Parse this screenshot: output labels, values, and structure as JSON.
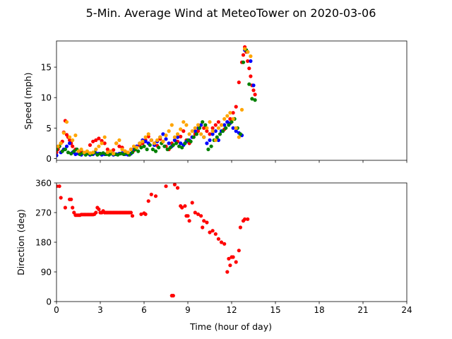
{
  "title": "5-Min. Average Wind at MeteoTower on 2020-03-06",
  "chart_data": [
    {
      "type": "scatter",
      "ylabel": "Speed (mph)",
      "xlim": [
        0,
        24
      ],
      "ylim": [
        -0.3,
        19.3
      ],
      "yticks": [
        0,
        5,
        10,
        15
      ],
      "xticks": [
        0,
        3,
        6,
        9,
        12,
        15,
        18,
        21,
        24
      ],
      "show_x_tick_labels": false,
      "grid": false,
      "colors": [
        "#ff0000",
        "#0000ff",
        "#008000",
        "#ffa500"
      ],
      "series": [
        {
          "color": "#ff0000",
          "x": [
            0.0,
            0.1,
            0.2,
            0.3,
            0.4,
            0.5,
            0.6,
            0.7,
            0.8,
            0.9,
            1.0,
            1.1,
            1.2,
            1.3,
            1.5,
            1.7,
            1.9,
            2.1,
            2.3,
            2.5,
            2.7,
            2.9,
            3.1,
            3.3,
            3.5,
            3.7,
            3.9,
            4.1,
            4.3,
            4.5,
            4.7,
            4.9,
            5.1,
            5.3,
            5.5,
            5.7,
            5.9,
            6.1,
            6.3,
            6.5,
            6.7,
            6.9,
            7.1,
            7.3,
            7.5,
            7.7,
            7.9,
            8.1,
            8.3,
            8.5,
            8.7,
            8.9,
            9.1,
            9.3,
            9.5,
            9.7,
            9.9,
            10.1,
            10.3,
            10.5,
            10.7,
            10.9,
            11.1,
            11.3,
            11.5,
            11.7,
            11.9,
            12.1,
            12.3,
            12.5,
            12.7,
            12.8,
            12.9,
            13.0,
            13.1,
            13.2,
            13.3,
            13.4,
            13.5,
            13.6
          ],
          "y": [
            1.0,
            1.5,
            2.0,
            2.5,
            2.8,
            4.3,
            6.2,
            3.9,
            3.5,
            3.0,
            2.5,
            2.0,
            1.2,
            1.5,
            1.0,
            1.2,
            0.9,
            1.0,
            2.2,
            2.8,
            3.0,
            3.3,
            2.9,
            2.5,
            1.5,
            1.0,
            1.4,
            2.5,
            2.0,
            1.8,
            1.2,
            1.0,
            1.5,
            1.3,
            2.0,
            2.2,
            2.5,
            3.0,
            3.6,
            3.0,
            2.5,
            2.1,
            3.2,
            2.8,
            2.0,
            1.5,
            2.5,
            3.0,
            2.8,
            3.6,
            4.5,
            3.0,
            2.5,
            3.5,
            4.0,
            4.5,
            5.5,
            5.0,
            4.5,
            4.0,
            5.0,
            5.5,
            6.0,
            5.5,
            4.8,
            6.0,
            6.5,
            7.5,
            8.5,
            12.5,
            15.8,
            17.0,
            18.3,
            17.5,
            16.0,
            14.8,
            13.5,
            12.0,
            11.2,
            10.5
          ]
        },
        {
          "color": "#0000ff",
          "x": [
            0.0,
            0.3,
            0.5,
            0.7,
            0.9,
            1.1,
            1.3,
            1.5,
            1.7,
            1.9,
            2.1,
            2.3,
            2.5,
            2.7,
            2.9,
            3.1,
            3.3,
            3.5,
            3.7,
            3.9,
            4.1,
            4.3,
            4.5,
            4.7,
            4.9,
            5.1,
            5.3,
            5.5,
            5.7,
            5.9,
            6.1,
            6.3,
            6.5,
            6.7,
            6.9,
            7.1,
            7.3,
            7.5,
            7.7,
            7.9,
            8.1,
            8.3,
            8.5,
            8.7,
            8.9,
            9.1,
            9.3,
            9.5,
            9.7,
            9.9,
            10.1,
            10.3,
            10.5,
            10.7,
            10.9,
            11.1,
            11.3,
            11.5,
            11.7,
            11.9,
            12.1,
            12.3,
            12.5,
            12.7,
            12.9,
            13.1,
            13.3,
            13.5
          ],
          "y": [
            0.5,
            1.0,
            1.5,
            2.0,
            2.5,
            1.0,
            0.7,
            0.8,
            0.6,
            0.9,
            0.8,
            0.6,
            0.7,
            0.9,
            0.8,
            0.6,
            0.7,
            0.8,
            0.9,
            0.6,
            0.7,
            0.8,
            0.9,
            0.7,
            0.6,
            0.8,
            1.5,
            2.0,
            2.5,
            3.0,
            2.8,
            2.5,
            3.0,
            2.2,
            2.8,
            3.5,
            4.0,
            3.2,
            2.5,
            2.0,
            3.0,
            3.5,
            2.5,
            2.2,
            2.8,
            3.0,
            3.5,
            4.5,
            5.0,
            5.5,
            3.5,
            2.5,
            3.0,
            4.0,
            4.5,
            3.0,
            4.5,
            5.5,
            6.0,
            5.8,
            5.0,
            4.5,
            4.2,
            3.8,
            17.8,
            17.5,
            16.0,
            12.0
          ]
        },
        {
          "color": "#008000",
          "x": [
            0.0,
            0.2,
            0.4,
            0.6,
            0.8,
            1.0,
            1.2,
            1.4,
            1.6,
            1.8,
            2.0,
            2.2,
            2.4,
            2.6,
            2.8,
            3.0,
            3.2,
            3.4,
            3.6,
            3.8,
            4.0,
            4.2,
            4.4,
            4.6,
            4.8,
            5.0,
            5.2,
            5.4,
            5.6,
            5.8,
            6.0,
            6.2,
            6.4,
            6.6,
            6.8,
            7.0,
            7.2,
            7.4,
            7.6,
            7.8,
            8.0,
            8.2,
            8.4,
            8.6,
            8.8,
            9.0,
            9.2,
            9.4,
            9.6,
            9.8,
            10.0,
            10.2,
            10.4,
            10.6,
            10.8,
            11.0,
            11.2,
            11.4,
            11.6,
            11.8,
            12.0,
            12.2,
            12.4,
            12.6,
            12.8,
            13.0,
            13.2,
            13.4,
            13.6
          ],
          "y": [
            1.5,
            2.0,
            1.2,
            1.5,
            1.0,
            0.8,
            1.2,
            1.5,
            0.7,
            0.9,
            0.6,
            0.8,
            0.7,
            1.0,
            0.6,
            0.8,
            0.9,
            0.7,
            0.6,
            0.8,
            0.7,
            0.6,
            0.8,
            0.7,
            0.9,
            0.6,
            1.0,
            1.5,
            1.2,
            1.8,
            2.0,
            1.5,
            2.2,
            1.5,
            1.2,
            1.8,
            2.5,
            2.0,
            1.5,
            1.8,
            2.2,
            2.5,
            2.0,
            1.8,
            2.5,
            3.0,
            2.8,
            3.5,
            4.0,
            5.0,
            6.0,
            5.5,
            1.5,
            2.0,
            3.0,
            3.5,
            4.0,
            4.5,
            5.0,
            5.5,
            6.0,
            6.5,
            5.0,
            4.0,
            15.8,
            17.8,
            12.2,
            9.8,
            9.6
          ]
        },
        {
          "color": "#ffa500",
          "x": [
            0.1,
            0.3,
            0.5,
            0.7,
            0.9,
            1.1,
            1.3,
            1.5,
            1.7,
            1.9,
            2.1,
            2.3,
            2.5,
            2.7,
            2.9,
            3.1,
            3.3,
            3.5,
            3.7,
            3.9,
            4.1,
            4.3,
            4.5,
            4.7,
            4.9,
            5.1,
            5.3,
            5.5,
            5.7,
            5.9,
            6.1,
            6.3,
            6.5,
            6.7,
            6.9,
            7.1,
            7.3,
            7.5,
            7.7,
            7.9,
            8.1,
            8.3,
            8.5,
            8.7,
            8.9,
            9.1,
            9.3,
            9.5,
            9.7,
            9.9,
            10.1,
            10.3,
            10.5,
            10.7,
            10.9,
            11.1,
            11.3,
            11.5,
            11.7,
            11.9,
            12.1,
            12.3,
            12.5,
            12.7,
            12.9,
            13.1,
            13.3
          ],
          "y": [
            2.0,
            2.5,
            4.2,
            6.0,
            3.5,
            3.0,
            3.8,
            1.2,
            1.5,
            1.0,
            1.2,
            0.9,
            1.0,
            1.5,
            2.0,
            2.5,
            3.5,
            1.0,
            1.2,
            0.8,
            2.5,
            3.0,
            1.5,
            1.2,
            1.0,
            1.5,
            2.0,
            1.8,
            2.5,
            2.8,
            3.5,
            4.0,
            3.0,
            2.5,
            3.0,
            3.5,
            2.8,
            3.8,
            4.5,
            5.5,
            3.5,
            4.0,
            4.8,
            6.0,
            5.5,
            4.0,
            4.5,
            5.0,
            5.5,
            4.0,
            3.5,
            5.0,
            6.0,
            4.5,
            3.0,
            5.0,
            5.5,
            6.5,
            7.0,
            7.5,
            6.5,
            5.0,
            3.5,
            8.0,
            18.0,
            17.5,
            16.8
          ]
        }
      ]
    },
    {
      "type": "scatter",
      "xlabel": "Time (hour of day)",
      "ylabel": "Direction (deg)",
      "xlim": [
        0,
        24
      ],
      "ylim": [
        0,
        360
      ],
      "yticks": [
        0,
        90,
        180,
        270,
        360
      ],
      "xticks": [
        0,
        3,
        6,
        9,
        12,
        15,
        18,
        21,
        24
      ],
      "grid": false,
      "series": [
        {
          "color": "#ff0000",
          "x": [
            0.0,
            0.2,
            0.3,
            0.6,
            0.9,
            1.0,
            1.1,
            1.2,
            1.3,
            1.4,
            1.5,
            1.6,
            1.7,
            1.8,
            1.9,
            2.0,
            2.1,
            2.2,
            2.3,
            2.4,
            2.5,
            2.6,
            2.7,
            2.8,
            2.9,
            3.0,
            3.1,
            3.2,
            3.3,
            3.4,
            3.5,
            3.6,
            3.7,
            3.8,
            3.9,
            4.0,
            4.1,
            4.2,
            4.3,
            4.4,
            4.5,
            4.6,
            4.7,
            4.8,
            4.9,
            5.0,
            5.1,
            5.2,
            5.8,
            6.0,
            6.1,
            6.3,
            6.5,
            6.8,
            7.5,
            7.9,
            8.0,
            8.1,
            8.3,
            8.5,
            8.6,
            8.8,
            8.9,
            9.0,
            9.1,
            9.3,
            9.5,
            9.7,
            9.9,
            10.0,
            10.1,
            10.3,
            10.5,
            10.7,
            10.9,
            11.1,
            11.3,
            11.5,
            11.7,
            11.8,
            11.9,
            12.0,
            12.1,
            12.3,
            12.5,
            12.6,
            12.8,
            12.9,
            13.1
          ],
          "y": [
            350,
            350,
            315,
            285,
            310,
            310,
            285,
            270,
            262,
            262,
            262,
            262,
            264,
            264,
            264,
            264,
            264,
            264,
            264,
            264,
            264,
            265,
            270,
            285,
            280,
            270,
            270,
            275,
            270,
            270,
            270,
            270,
            270,
            270,
            270,
            270,
            270,
            270,
            270,
            270,
            270,
            270,
            270,
            270,
            270,
            270,
            270,
            260,
            265,
            268,
            265,
            305,
            325,
            320,
            350,
            18,
            18,
            355,
            345,
            290,
            285,
            290,
            260,
            260,
            245,
            300,
            270,
            265,
            260,
            225,
            245,
            240,
            210,
            215,
            205,
            190,
            180,
            175,
            90,
            130,
            110,
            135,
            135,
            120,
            155,
            225,
            245,
            250,
            250
          ]
        }
      ]
    }
  ]
}
